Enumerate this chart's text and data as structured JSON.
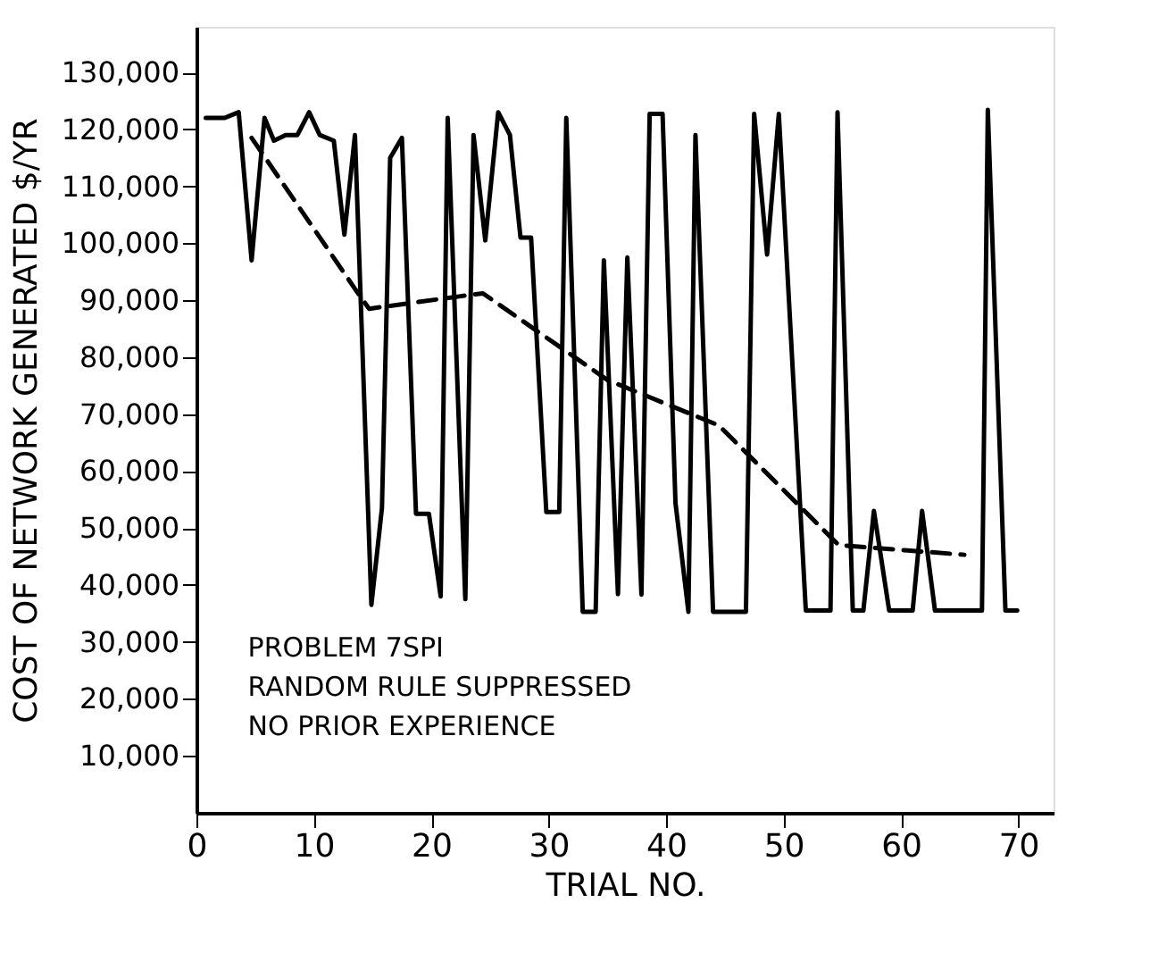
{
  "chart_data": {
    "type": "line",
    "xlabel": "TRIAL NO.",
    "ylabel": "COST OF NETWORK GENERATED $/YR",
    "annotations": [
      "PROBLEM 7SPI",
      "RANDOM RULE SUPPRESSED",
      "NO PRIOR EXPERIENCE"
    ],
    "xlim": [
      0,
      73
    ],
    "xticks": [
      0,
      10,
      20,
      30,
      40,
      50,
      60,
      70
    ],
    "ylim": [
      0,
      138000
    ],
    "yticks": [
      {
        "value": 10000,
        "label": "10,000"
      },
      {
        "value": 20000,
        "label": "20,000"
      },
      {
        "value": 30000,
        "label": "30,000"
      },
      {
        "value": 40000,
        "label": "40,000"
      },
      {
        "value": 50000,
        "label": "50,000"
      },
      {
        "value": 60000,
        "label": "60,000"
      },
      {
        "value": 70000,
        "label": "70,000"
      },
      {
        "value": 80000,
        "label": "80,000"
      },
      {
        "value": 90000,
        "label": "90,000"
      },
      {
        "value": 100000,
        "label": "100,000"
      },
      {
        "value": 110000,
        "label": "110,000"
      },
      {
        "value": 120000,
        "label": "120,000"
      },
      {
        "value": 130000,
        "label": "130,000"
      }
    ],
    "grid": false,
    "marker": "none",
    "series": [
      {
        "color": "#000000",
        "line_style": "solid",
        "x": [
          0.8,
          2.4,
          3.6,
          4.7,
          5.8,
          6.6,
          7.6,
          8.6,
          9.6,
          10.5,
          11.7,
          12.6,
          13.5,
          14.9,
          15.8,
          16.5,
          17.5,
          18.7,
          19.8,
          20.8,
          21.4,
          22.9,
          23.6,
          24.6,
          25.7,
          26.7,
          27.6,
          28.5,
          29.8,
          30.9,
          31.5,
          32.9,
          34.0,
          34.7,
          35.9,
          36.7,
          37.9,
          38.6,
          39.7,
          40.8,
          41.9,
          42.5,
          44.0,
          46.8,
          47.5,
          48.6,
          49.6,
          51.9,
          54.0,
          54.6,
          55.9,
          56.8,
          57.7,
          59.0,
          61.0,
          61.8,
          62.9,
          66.9,
          67.4,
          68.9,
          69.9
        ],
        "values": [
          122000,
          122000,
          123000,
          97000,
          122000,
          118000,
          119000,
          119000,
          123000,
          119000,
          118000,
          101500,
          119000,
          36500,
          53500,
          115000,
          118500,
          52500,
          52500,
          38000,
          122000,
          37500,
          119000,
          100500,
          123000,
          119000,
          101000,
          101000,
          52800,
          52800,
          122000,
          35300,
          35300,
          97000,
          38400,
          97500,
          38300,
          122700,
          122700,
          54400,
          35300,
          119000,
          35300,
          35300,
          122700,
          98000,
          122700,
          35500,
          35500,
          123000,
          35500,
          35500,
          53000,
          35500,
          35500,
          53000,
          35500,
          35500,
          123400,
          35500,
          35500
        ]
      },
      {
        "color": "#000000",
        "line_style": "dashed",
        "x": [
          4.7,
          13.5,
          14.7,
          22.5,
          24.4,
          35.0,
          44.5,
          54.7,
          65.4
        ],
        "values": [
          118500,
          92000,
          88500,
          90700,
          91200,
          76000,
          68000,
          47000,
          45300
        ]
      }
    ]
  }
}
